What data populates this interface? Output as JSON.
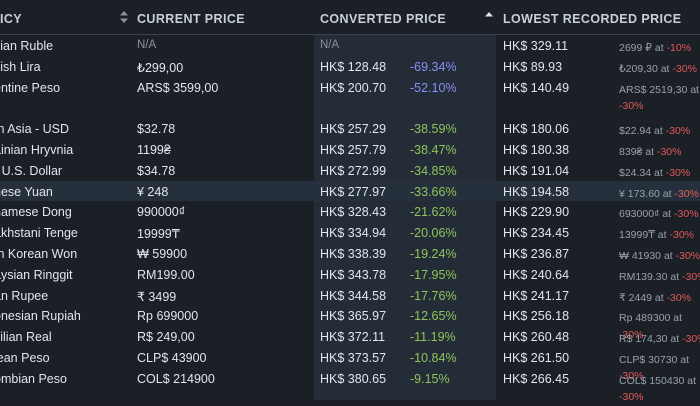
{
  "header": {
    "col_currency": "ICY",
    "col_current_price": "CURRENT PRICE",
    "col_converted_price": "CONVERTED PRICE",
    "col_lowest_price": "LOWEST RECORDED PRICE",
    "sort_icon": "sort-updown-icon",
    "sorted_icon": "sort-ascending-icon"
  },
  "colors": {
    "background": "#1b1f26",
    "converted_column_bg": "#242c38",
    "positive_diff": "#8fc45a",
    "strong_diff": "#8a8ff0",
    "discount_red": "#e35a5a"
  },
  "rows": [
    {
      "currency": "sian Ruble",
      "price": "N/A",
      "converted": "N/A",
      "diff": "",
      "lowest": "HK$ 329.11",
      "lowest_detail": "2699 ₽ at",
      "lowest_discount": "-10%"
    },
    {
      "currency": "kish Lira",
      "price": "₺299,00",
      "converted": "HK$ 128.48",
      "diff": "-69.34%",
      "lowest": "HK$ 89.93",
      "lowest_detail": "₺209,30 at",
      "lowest_discount": "-30%"
    },
    {
      "currency": "entine Peso",
      "price": "ARS$ 3599,00",
      "converted": "HK$ 200.70",
      "diff": "-52.10%",
      "lowest": "HK$ 140.49",
      "lowest_detail": "ARS$ 2519,30 at",
      "lowest_discount": "-30%"
    },
    {
      "currency": "th Asia - USD",
      "price": "$32.78",
      "converted": "HK$ 257.29",
      "diff": "-38.59%",
      "lowest": "HK$ 180.06",
      "lowest_detail": "$22.94 at",
      "lowest_discount": "-30%"
    },
    {
      "currency": "ainian Hryvnia",
      "price": "1199₴",
      "converted": "HK$ 257.79",
      "diff": "-38.47%",
      "lowest": "HK$ 180.38",
      "lowest_detail": "839₴ at",
      "lowest_discount": "-30%"
    },
    {
      "currency": "- U.S. Dollar",
      "price": "$34.78",
      "converted": "HK$ 272.99",
      "diff": "-34.85%",
      "lowest": "HK$ 191.04",
      "lowest_detail": "$24.34 at",
      "lowest_discount": "-30%"
    },
    {
      "currency": "nese Yuan",
      "price": "¥ 248",
      "converted": "HK$ 277.97",
      "diff": "-33.66%",
      "lowest": "HK$ 194.58",
      "lowest_detail": "¥ 173.60 at",
      "lowest_discount": "-30%"
    },
    {
      "currency": "namese Dong",
      "price": "990000₫",
      "converted": "HK$ 328.43",
      "diff": "-21.62%",
      "lowest": "HK$ 229.90",
      "lowest_detail": "693000₫ at",
      "lowest_discount": "-30%"
    },
    {
      "currency": "akhstani Tenge",
      "price": "19999₸",
      "converted": "HK$ 334.94",
      "diff": "-20.06%",
      "lowest": "HK$ 234.45",
      "lowest_detail": "13999₸ at",
      "lowest_discount": "-30%"
    },
    {
      "currency": "th Korean Won",
      "price": "₩ 59900",
      "converted": "HK$ 338.39",
      "diff": "-19.24%",
      "lowest": "HK$ 236.87",
      "lowest_detail": "₩ 41930 at",
      "lowest_discount": "-30%"
    },
    {
      "currency": "aysian Ringgit",
      "price": "RM199.00",
      "converted": "HK$ 343.78",
      "diff": "-17.95%",
      "lowest": "HK$ 240.64",
      "lowest_detail": "RM139.30 at",
      "lowest_discount": "-30%"
    },
    {
      "currency": "an Rupee",
      "price": "₹ 3499",
      "converted": "HK$ 344.58",
      "diff": "-17.76%",
      "lowest": "HK$ 241.17",
      "lowest_detail": "₹ 2449 at",
      "lowest_discount": "-30%"
    },
    {
      "currency": "onesian Rupiah",
      "price": "Rp 699000",
      "converted": "HK$ 365.97",
      "diff": "-12.65%",
      "lowest": "HK$ 256.18",
      "lowest_detail": "Rp 489300 at",
      "lowest_discount": "-30%"
    },
    {
      "currency": "zilian Real",
      "price": "R$ 249,00",
      "converted": "HK$ 372.11",
      "diff": "-11.19%",
      "lowest": "HK$ 260.48",
      "lowest_detail": "R$ 174,30 at",
      "lowest_discount": "-30%"
    },
    {
      "currency": "lean Peso",
      "price": "CLP$ 43900",
      "converted": "HK$ 373.57",
      "diff": "-10.84%",
      "lowest": "HK$ 261.50",
      "lowest_detail": "CLP$ 30730 at",
      "lowest_discount": "-30%"
    },
    {
      "currency": "ombian Peso",
      "price": "COL$ 214900",
      "converted": "HK$ 380.65",
      "diff": "-9.15%",
      "lowest": "HK$ 266.45",
      "lowest_detail": "COL$ 150430 at",
      "lowest_discount": "-30%"
    }
  ]
}
